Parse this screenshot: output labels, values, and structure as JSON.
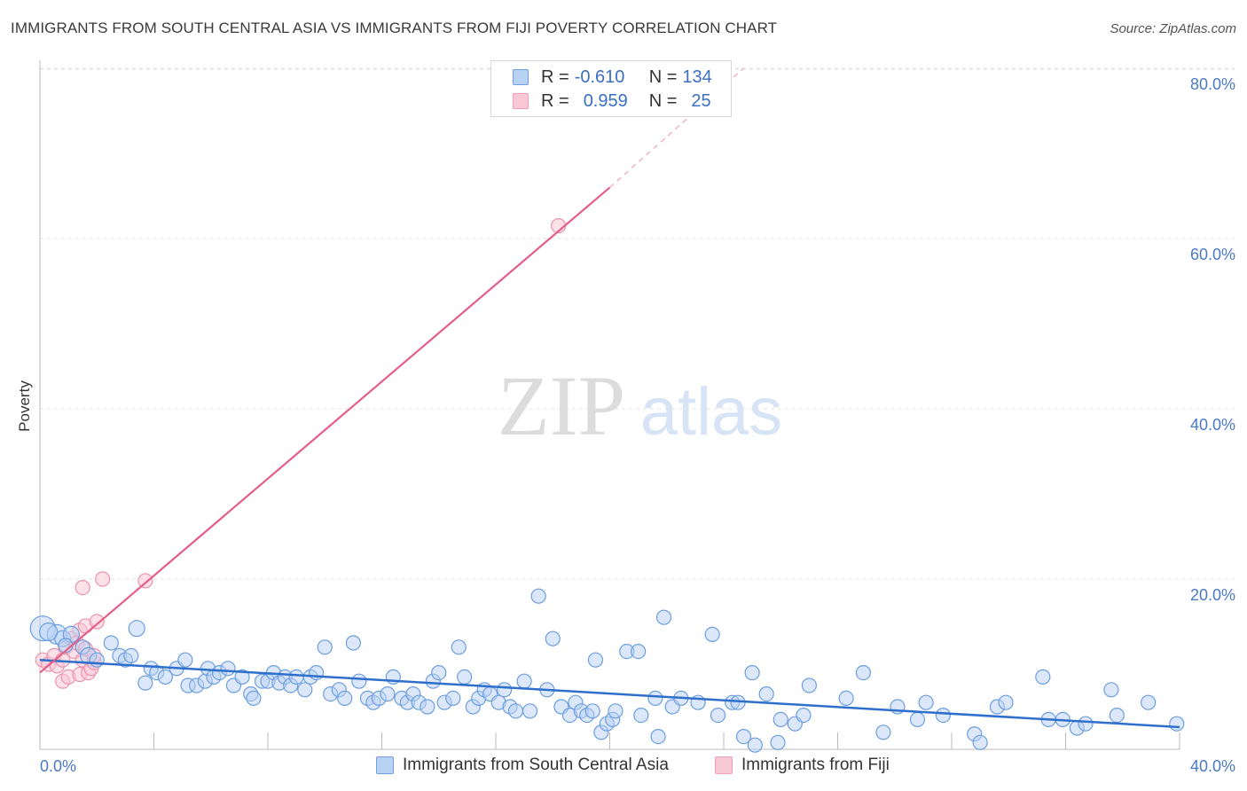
{
  "title": "IMMIGRANTS FROM SOUTH CENTRAL ASIA VS IMMIGRANTS FROM FIJI POVERTY CORRELATION CHART",
  "source": "Source: ZipAtlas.com",
  "watermark": {
    "zip": "ZIP",
    "atlas": "atlas"
  },
  "legend": {
    "rows": [
      {
        "r_label": "R =",
        "r_value": "-0.610",
        "n_label": "N =",
        "n_value": "134",
        "color": "#6fa0e0",
        "fill": "#b9d1f3"
      },
      {
        "r_label": "R =",
        "r_value": "0.959",
        "n_label": "N =",
        "n_value": "25",
        "color": "#f0a0b8",
        "fill": "#f8c8d6"
      }
    ]
  },
  "bottom_legend": {
    "blue": "Immigrants from South Central Asia",
    "pink": "Immigrants from Fiji"
  },
  "chart_data": {
    "type": "scatter",
    "xlabel": "",
    "ylabel": "Poverty",
    "xlim": [
      0,
      40
    ],
    "ylim": [
      0,
      84
    ],
    "x_ticks": [
      "0.0%",
      "40.0%"
    ],
    "y_ticks": [
      {
        "value": 20,
        "label": "20.0%"
      },
      {
        "value": 40,
        "label": "40.0%"
      },
      {
        "value": 60,
        "label": "60.0%"
      },
      {
        "value": 80,
        "label": "80.0%"
      }
    ],
    "grid": true,
    "series": [
      {
        "name": "Immigrants from South Central Asia",
        "color": "#4a86d8",
        "trend": {
          "x0": 0,
          "y0": 10.5,
          "x1": 40,
          "y1": 2.6
        },
        "points": [
          [
            0.1,
            14.2,
            14
          ],
          [
            0.6,
            13.5,
            11
          ],
          [
            0.8,
            13.0,
            9
          ],
          [
            1.1,
            13.5,
            9
          ],
          [
            1.5,
            12.0,
            8
          ],
          [
            1.7,
            11.0,
            9
          ],
          [
            2.0,
            10.5,
            8
          ],
          [
            2.5,
            12.5,
            8
          ],
          [
            2.8,
            11.0,
            8
          ],
          [
            3.0,
            10.5,
            8
          ],
          [
            3.2,
            11.0,
            8
          ],
          [
            3.4,
            14.2,
            9
          ],
          [
            3.7,
            7.8,
            8
          ],
          [
            3.9,
            9.5,
            8
          ],
          [
            4.1,
            9.0,
            8
          ],
          [
            4.4,
            8.5,
            8
          ],
          [
            4.8,
            9.5,
            8
          ],
          [
            5.1,
            10.5,
            8
          ],
          [
            5.2,
            7.5,
            8
          ],
          [
            5.5,
            7.5,
            8
          ],
          [
            5.8,
            8.0,
            8
          ],
          [
            5.9,
            9.5,
            8
          ],
          [
            6.1,
            8.5,
            8
          ],
          [
            6.3,
            9.0,
            8
          ],
          [
            6.6,
            9.5,
            8
          ],
          [
            6.8,
            7.5,
            8
          ],
          [
            7.1,
            8.5,
            8
          ],
          [
            7.4,
            6.5,
            8
          ],
          [
            7.5,
            6.0,
            8
          ],
          [
            7.8,
            8.0,
            8
          ],
          [
            8.0,
            8.0,
            8
          ],
          [
            8.2,
            9.0,
            8
          ],
          [
            8.4,
            7.8,
            8
          ],
          [
            8.6,
            8.5,
            8
          ],
          [
            8.8,
            7.5,
            8
          ],
          [
            9.0,
            8.5,
            8
          ],
          [
            9.3,
            7.0,
            8
          ],
          [
            9.5,
            8.5,
            8
          ],
          [
            9.7,
            9.0,
            8
          ],
          [
            10.0,
            12.0,
            8
          ],
          [
            10.2,
            6.5,
            8
          ],
          [
            10.5,
            7.0,
            8
          ],
          [
            10.7,
            6.0,
            8
          ],
          [
            11.0,
            12.5,
            8
          ],
          [
            11.2,
            8.0,
            8
          ],
          [
            11.5,
            6.0,
            8
          ],
          [
            11.7,
            5.5,
            8
          ],
          [
            11.9,
            6.0,
            8
          ],
          [
            12.2,
            6.5,
            8
          ],
          [
            12.4,
            8.5,
            8
          ],
          [
            12.7,
            6.0,
            8
          ],
          [
            12.9,
            5.5,
            8
          ],
          [
            13.1,
            6.5,
            8
          ],
          [
            13.3,
            5.5,
            8
          ],
          [
            13.6,
            5.0,
            8
          ],
          [
            13.8,
            8.0,
            8
          ],
          [
            14.0,
            9.0,
            8
          ],
          [
            14.2,
            5.5,
            8
          ],
          [
            14.5,
            6.0,
            8
          ],
          [
            14.7,
            12.0,
            8
          ],
          [
            14.9,
            8.5,
            8
          ],
          [
            15.2,
            5.0,
            8
          ],
          [
            15.4,
            6.0,
            8
          ],
          [
            15.6,
            7.0,
            8
          ],
          [
            15.8,
            6.5,
            8
          ],
          [
            16.1,
            5.5,
            8
          ],
          [
            16.3,
            7.0,
            8
          ],
          [
            16.5,
            5.0,
            8
          ],
          [
            16.7,
            4.5,
            8
          ],
          [
            17.0,
            8.0,
            8
          ],
          [
            17.2,
            4.5,
            8
          ],
          [
            17.5,
            18.0,
            8
          ],
          [
            17.8,
            7.0,
            8
          ],
          [
            18.0,
            13.0,
            8
          ],
          [
            18.3,
            5.0,
            8
          ],
          [
            18.6,
            4.0,
            8
          ],
          [
            18.8,
            5.5,
            8
          ],
          [
            19.0,
            4.5,
            8
          ],
          [
            19.2,
            4.0,
            8
          ],
          [
            19.4,
            4.5,
            8
          ],
          [
            19.5,
            10.5,
            8
          ],
          [
            19.7,
            2.0,
            8
          ],
          [
            19.9,
            3.0,
            8
          ],
          [
            20.1,
            3.5,
            8
          ],
          [
            20.2,
            4.5,
            8
          ],
          [
            20.6,
            11.5,
            8
          ],
          [
            21.0,
            11.5,
            8
          ],
          [
            21.1,
            4.0,
            8
          ],
          [
            21.6,
            6.0,
            8
          ],
          [
            21.9,
            15.5,
            8
          ],
          [
            21.7,
            1.5,
            8
          ],
          [
            22.2,
            5.0,
            8
          ],
          [
            22.5,
            6.0,
            8
          ],
          [
            23.1,
            5.5,
            8
          ],
          [
            23.6,
            13.5,
            8
          ],
          [
            23.8,
            4.0,
            8
          ],
          [
            24.3,
            5.5,
            8
          ],
          [
            24.5,
            5.5,
            8
          ],
          [
            24.7,
            1.5,
            8
          ],
          [
            25.0,
            9.0,
            8
          ],
          [
            25.1,
            0.5,
            8
          ],
          [
            25.5,
            6.5,
            8
          ],
          [
            25.9,
            0.8,
            8
          ],
          [
            26.0,
            3.5,
            8
          ],
          [
            26.5,
            3.0,
            8
          ],
          [
            26.8,
            4.0,
            8
          ],
          [
            27.0,
            7.5,
            8
          ],
          [
            28.3,
            6.0,
            8
          ],
          [
            28.9,
            9.0,
            8
          ],
          [
            29.6,
            2.0,
            8
          ],
          [
            30.1,
            5.0,
            8
          ],
          [
            30.8,
            3.5,
            8
          ],
          [
            31.1,
            5.5,
            8
          ],
          [
            31.7,
            4.0,
            8
          ],
          [
            32.8,
            1.8,
            8
          ],
          [
            33.0,
            0.8,
            8
          ],
          [
            33.6,
            5.0,
            8
          ],
          [
            33.9,
            5.5,
            8
          ],
          [
            35.2,
            8.5,
            8
          ],
          [
            35.4,
            3.5,
            8
          ],
          [
            35.9,
            3.5,
            8
          ],
          [
            36.4,
            2.5,
            8
          ],
          [
            36.7,
            3.0,
            8
          ],
          [
            37.6,
            7.0,
            8
          ],
          [
            37.8,
            4.0,
            8
          ],
          [
            38.9,
            5.5,
            8
          ],
          [
            39.9,
            3.0,
            8
          ],
          [
            0.3,
            13.8,
            10
          ],
          [
            0.9,
            12.2,
            8
          ]
        ]
      },
      {
        "name": "Immigrants from Fiji",
        "color": "#e8789a",
        "trend": {
          "x0": 0,
          "y0": 9.0,
          "x1": 20.0,
          "y1": 66.0,
          "dash_x1": 24.7,
          "dash_y1": 80.0
        },
        "points": [
          [
            0.1,
            10.5,
            8
          ],
          [
            0.3,
            10.0,
            8
          ],
          [
            0.5,
            11.0,
            8
          ],
          [
            0.6,
            9.8,
            8
          ],
          [
            0.8,
            10.5,
            8
          ],
          [
            0.8,
            8.0,
            8
          ],
          [
            0.9,
            12.0,
            8
          ],
          [
            1.0,
            8.5,
            8
          ],
          [
            1.1,
            13.0,
            8
          ],
          [
            1.2,
            11.5,
            8
          ],
          [
            1.3,
            12.5,
            8
          ],
          [
            1.4,
            14.0,
            8
          ],
          [
            1.5,
            10.5,
            8
          ],
          [
            1.6,
            11.8,
            8
          ],
          [
            1.4,
            8.8,
            8
          ],
          [
            1.6,
            14.5,
            8
          ],
          [
            1.7,
            9.0,
            8
          ],
          [
            1.8,
            9.5,
            8
          ],
          [
            1.9,
            10.2,
            8
          ],
          [
            1.9,
            11.0,
            8
          ],
          [
            2.0,
            15.0,
            8
          ],
          [
            1.5,
            19.0,
            8
          ],
          [
            2.2,
            20.0,
            8
          ],
          [
            3.7,
            19.8,
            8
          ],
          [
            18.2,
            61.5,
            8
          ]
        ]
      }
    ]
  }
}
